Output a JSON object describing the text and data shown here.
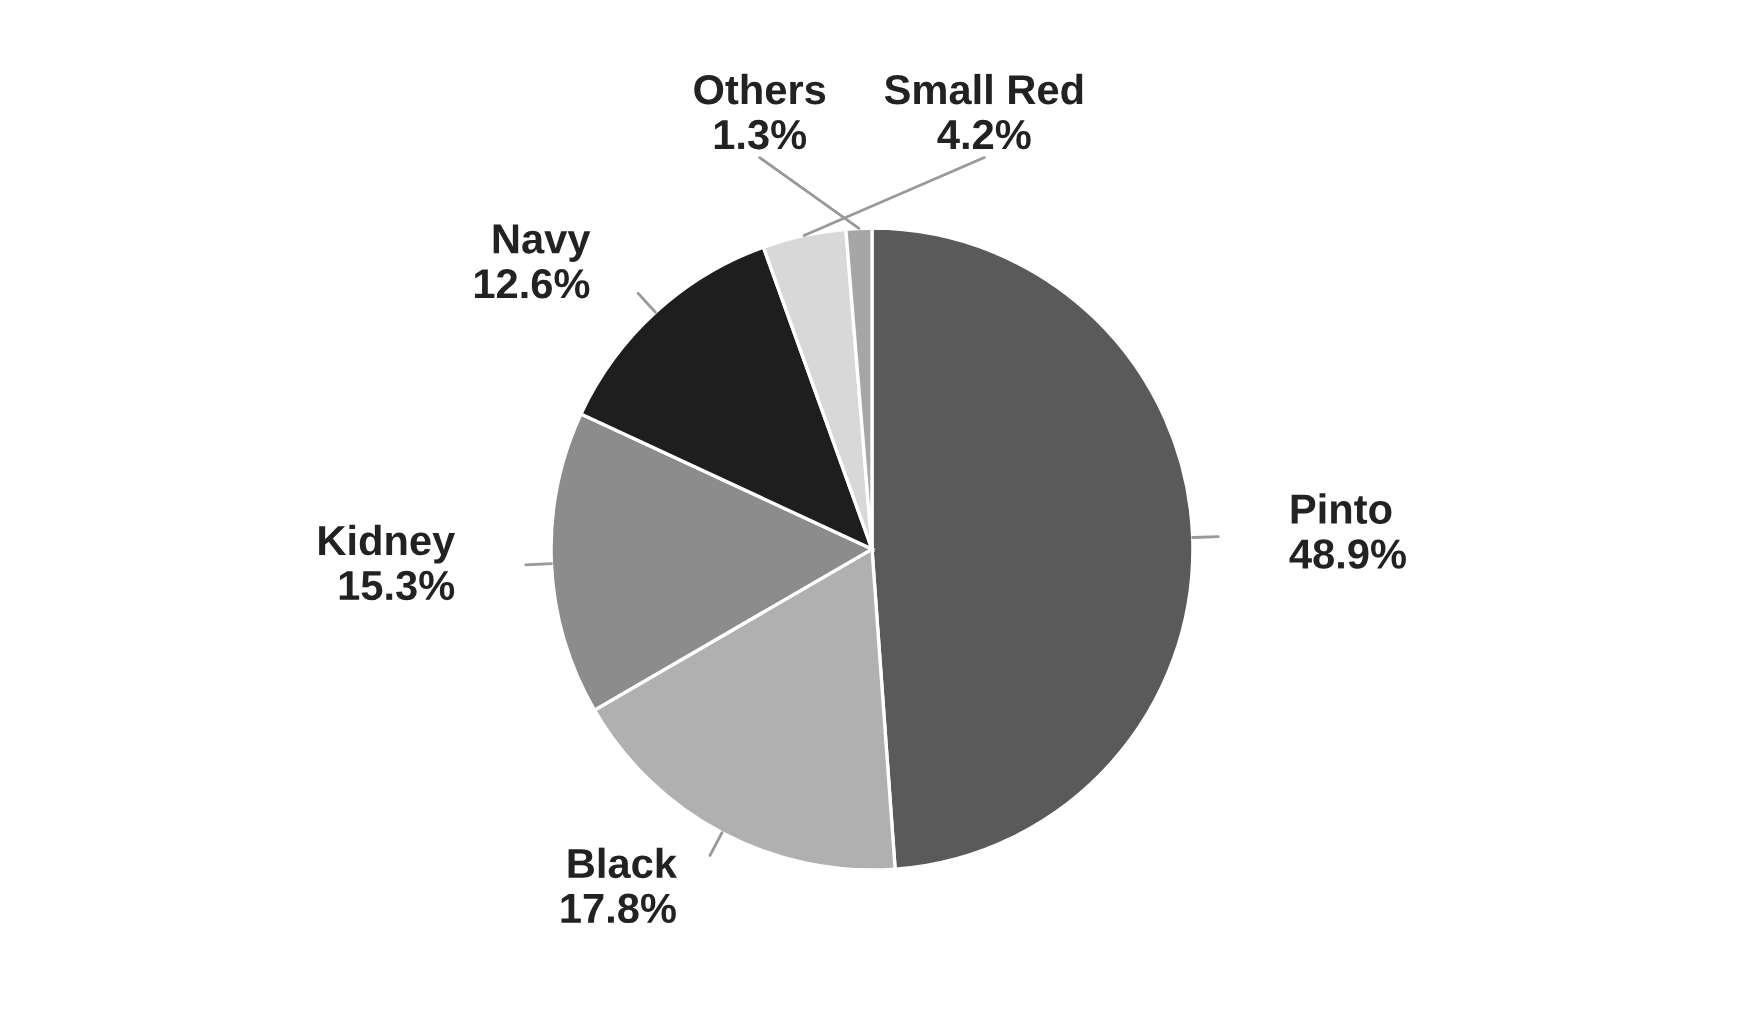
{
  "chart_data": {
    "type": "pie",
    "categories": [
      "Pinto",
      "Black",
      "Kidney",
      "Navy",
      "Small Red",
      "Others"
    ],
    "values": [
      48.9,
      17.8,
      15.3,
      12.6,
      4.2,
      1.3
    ],
    "value_labels": [
      "48.9%",
      "17.8%",
      "15.3%",
      "12.6%",
      "4.2%",
      "1.3%"
    ],
    "colors": [
      "#5a5a5a",
      "#b0b0b0",
      "#8c8c8c",
      "#1e1e1e",
      "#d8d8d8",
      "#a6a6a6"
    ]
  }
}
